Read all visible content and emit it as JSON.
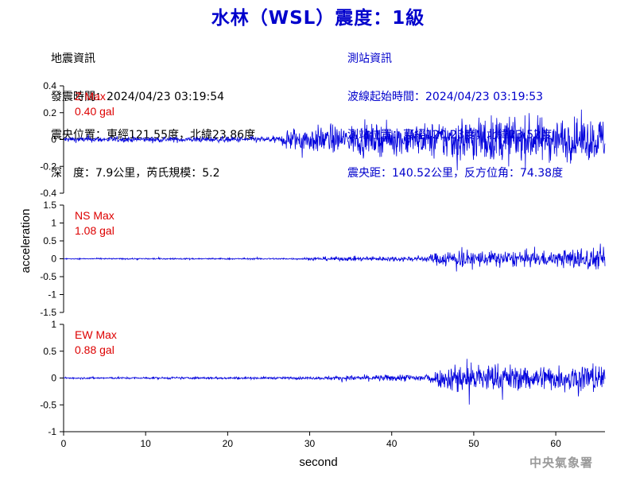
{
  "header": {
    "title": "水林（WSL）震度：1級"
  },
  "event_info": {
    "heading": "地震資訊",
    "origin_time": "發震時間：2024/04/23 03:19:54",
    "epicenter": "震央位置：東經121.55度，北緯23.86度",
    "depth_mag": "深　度：7.9公里，芮氏規模：5.2"
  },
  "station_info": {
    "heading": "測站資訊",
    "wave_start": "波線起始時間：2024/04/23 03:19:53",
    "station_loc": "測站位置：東經120.23度，北緯23.52度",
    "distance": "震央距：140.52公里，反方位角：74.38度"
  },
  "watermark": "中央氣象署",
  "colors": {
    "trace": "#0000dd",
    "max_label": "#dd0000",
    "title": "#0000cc"
  },
  "chart_data": {
    "type": "line",
    "xlabel": "second",
    "ylabel": "acceleration",
    "xlim": [
      0,
      66
    ],
    "xticks": [
      0,
      10,
      20,
      30,
      40,
      50,
      60
    ],
    "panels": [
      {
        "component": "Z",
        "max_label": "Z Max",
        "max_value": "0.40 gal",
        "ylim": [
          -0.4,
          0.4
        ],
        "yticks": [
          -0.4,
          -0.2,
          0,
          0.2,
          0.4
        ],
        "ytick_labels": [
          "-0.4",
          "-0.2",
          "0",
          "0.2",
          "0.4"
        ],
        "envelope": [
          [
            0,
            0.035
          ],
          [
            20,
            0.035
          ],
          [
            26.5,
            0.04
          ],
          [
            27,
            0.15
          ],
          [
            30,
            0.17
          ],
          [
            44,
            0.2
          ],
          [
            46,
            0.24
          ],
          [
            48,
            0.3
          ],
          [
            55,
            0.3
          ],
          [
            60,
            0.28
          ],
          [
            66,
            0.27
          ]
        ]
      },
      {
        "component": "NS",
        "max_label": "NS Max",
        "max_value": "1.08 gal",
        "ylim": [
          -1.5,
          1.5
        ],
        "yticks": [
          -1.5,
          -1,
          -0.5,
          0,
          0.5,
          1,
          1.5
        ],
        "ytick_labels": [
          "-1.5",
          "-1",
          "-0.5",
          "0",
          "0.5",
          "1",
          "1.5"
        ],
        "envelope": [
          [
            0,
            0.03
          ],
          [
            28,
            0.04
          ],
          [
            32,
            0.1
          ],
          [
            44,
            0.13
          ],
          [
            45,
            0.25
          ],
          [
            47,
            0.45
          ],
          [
            52,
            0.4
          ],
          [
            55,
            0.4
          ],
          [
            60,
            0.35
          ],
          [
            63,
            0.6
          ],
          [
            66,
            0.45
          ]
        ]
      },
      {
        "component": "EW",
        "max_label": "EW Max",
        "max_value": "0.88 gal",
        "ylim": [
          -1,
          1
        ],
        "yticks": [
          -1,
          -0.5,
          0,
          0.5,
          1
        ],
        "ytick_labels": [
          "-1",
          "-0.5",
          "0",
          "0.5",
          "1"
        ],
        "envelope": [
          [
            0,
            0.03
          ],
          [
            30,
            0.04
          ],
          [
            35,
            0.08
          ],
          [
            44,
            0.13
          ],
          [
            46,
            0.3
          ],
          [
            48,
            0.55
          ],
          [
            55,
            0.42
          ],
          [
            60,
            0.4
          ],
          [
            64,
            0.55
          ],
          [
            66,
            0.4
          ]
        ]
      }
    ]
  }
}
